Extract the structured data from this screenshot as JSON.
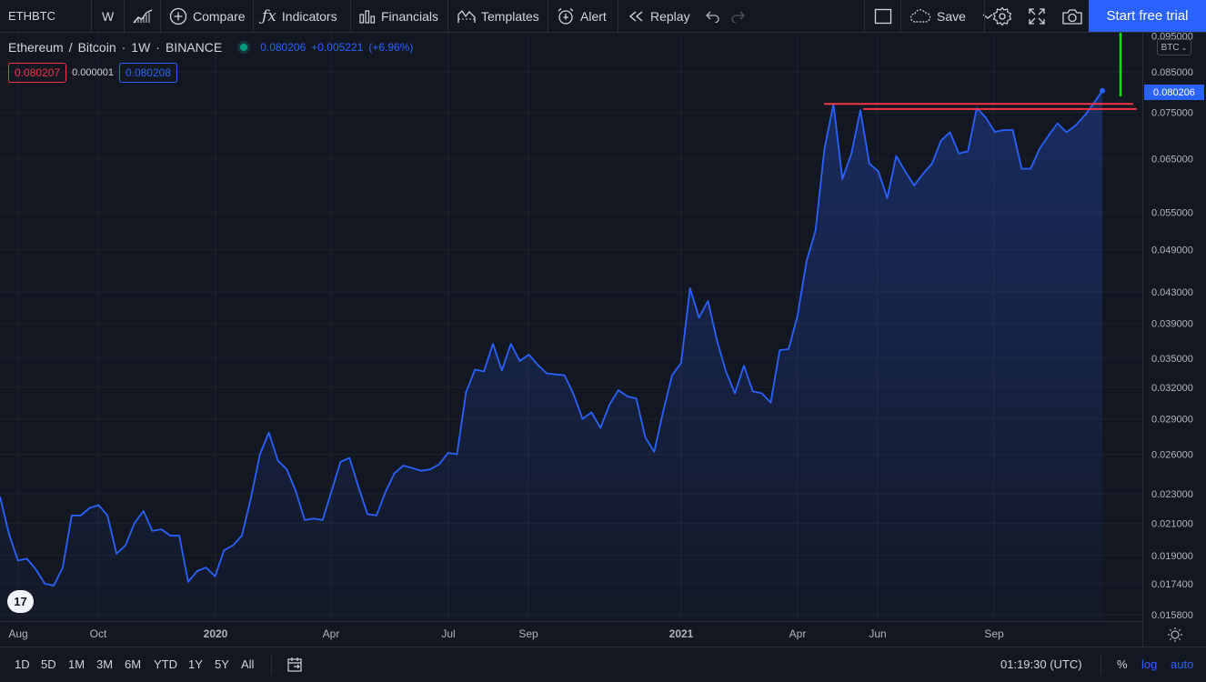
{
  "toolbar": {
    "symbol": "ETHBTC",
    "interval": "W",
    "compare": "Compare",
    "indicators": "Indicators",
    "financials": "Financials",
    "templates": "Templates",
    "alert": "Alert",
    "replay": "Replay",
    "save": "Save",
    "start_trial": "Start free trial"
  },
  "legend": {
    "name": "Ethereum",
    "quote": "Bitcoin",
    "interval": "1W",
    "exchange": "BINANCE",
    "last": "0.080206",
    "change": "+0.005221",
    "change_pct": "(+6.96%)",
    "bid": "0.080207",
    "spread": "0.000001",
    "ask": "0.080208"
  },
  "price_scale": {
    "currency": "BTC",
    "current_price": "0.080206",
    "ticks": [
      "0.095000",
      "0.085000",
      "0.075000",
      "0.065000",
      "0.055000",
      "0.049000",
      "0.043000",
      "0.039000",
      "0.035000",
      "0.032000",
      "0.029000",
      "0.026000",
      "0.023000",
      "0.021000",
      "0.019000",
      "0.017400",
      "0.015800"
    ]
  },
  "time_scale": {
    "labels": [
      {
        "text": "Aug",
        "bold": false
      },
      {
        "text": "Oct",
        "bold": false
      },
      {
        "text": "2020",
        "bold": true
      },
      {
        "text": "Apr",
        "bold": false
      },
      {
        "text": "Jul",
        "bold": false
      },
      {
        "text": "Sep",
        "bold": false
      },
      {
        "text": "2021",
        "bold": true
      },
      {
        "text": "Apr",
        "bold": false
      },
      {
        "text": "Jun",
        "bold": false
      },
      {
        "text": "Sep",
        "bold": false
      }
    ]
  },
  "bottom": {
    "ranges": [
      "1D",
      "5D",
      "1M",
      "3M",
      "6M",
      "YTD",
      "1Y",
      "5Y",
      "All"
    ],
    "clock": "01:19:30 (UTC)",
    "percent": "%",
    "log": "log",
    "auto": "auto"
  },
  "colors": {
    "line": "#2962ff",
    "resistance": "#f23645",
    "arrow": "#00e600",
    "accent": "#2962ff"
  },
  "chart_data": {
    "type": "area",
    "scale": "log",
    "ylim": [
      0.0155,
      0.096
    ],
    "series": [
      {
        "values": [
          0.0228,
          0.0203,
          0.0187,
          0.0188,
          0.0182,
          0.0174,
          0.0173,
          0.0183,
          0.0215,
          0.0215,
          0.022,
          0.0222,
          0.0215,
          0.0191,
          0.0196,
          0.021,
          0.0218,
          0.0205,
          0.0206,
          0.0202,
          0.0202,
          0.0175,
          0.0181,
          0.0183,
          0.0178,
          0.0193,
          0.0196,
          0.0202,
          0.0227,
          0.026,
          0.0278,
          0.0255,
          0.0248,
          0.0232,
          0.0212,
          0.0213,
          0.0212,
          0.0232,
          0.0254,
          0.0257,
          0.0235,
          0.0216,
          0.0215,
          0.0231,
          0.0245,
          0.0251,
          0.0249,
          0.0247,
          0.0248,
          0.0252,
          0.0261,
          0.026,
          0.0315,
          0.0338,
          0.0336,
          0.0366,
          0.0337,
          0.0366,
          0.0347,
          0.0354,
          0.0343,
          0.0334,
          0.0333,
          0.0332,
          0.0313,
          0.029,
          0.0296,
          0.0282,
          0.0303,
          0.0317,
          0.0311,
          0.0309,
          0.0274,
          0.0262,
          0.0297,
          0.0332,
          0.0345,
          0.0435,
          0.0397,
          0.0418,
          0.037,
          0.0336,
          0.0314,
          0.0342,
          0.0316,
          0.0314,
          0.0305,
          0.0359,
          0.036,
          0.04,
          0.0473,
          0.052,
          0.067,
          0.077,
          0.061,
          0.066,
          0.0755,
          0.064,
          0.0625,
          0.0575,
          0.0655,
          0.0625,
          0.0598,
          0.062,
          0.064,
          0.0687,
          0.0705,
          0.066,
          0.0665,
          0.076,
          0.0738,
          0.0706,
          0.071,
          0.071,
          0.063,
          0.063,
          0.067,
          0.0698,
          0.0725,
          0.0705,
          0.072,
          0.0742,
          0.077,
          0.0802
        ]
      }
    ],
    "resistance_lines": [
      0.077,
      0.0758
    ]
  }
}
